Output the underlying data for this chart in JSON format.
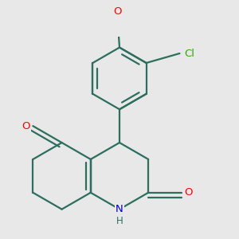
{
  "bg": "#e8e8e8",
  "bc": "#2d6e5e",
  "lw": 1.6,
  "O_color": "#ff0000",
  "N_color": "#0000cc",
  "Cl_color": "#33aa00",
  "fs": 9.5,
  "xlim": [
    -0.05,
    1.45
  ],
  "ylim": [
    -0.05,
    1.65
  ]
}
